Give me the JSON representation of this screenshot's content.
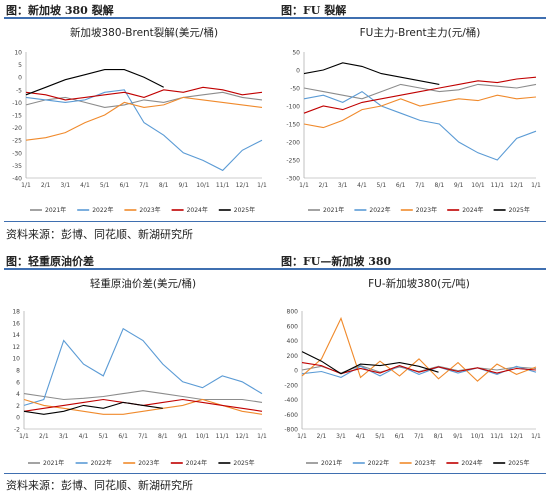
{
  "sections": {
    "s1": "图：新加坡 380 裂解",
    "s2": "图：FU 裂解",
    "s3": "图：轻重原油价差",
    "s4": "图：FU—新加坡 380"
  },
  "source": "资料来源：彭博、同花顺、新湖研究所",
  "colors": {
    "2021年": "#8c8c8c",
    "2022年": "#5b9bd5",
    "2023年": "#f08a2c",
    "2024年": "#c00000",
    "2025年": "#000000"
  },
  "chart_data": [
    {
      "type": "line",
      "title": "新加坡380-Brent裂解(美元/桶)",
      "x": [
        "1/1",
        "2/1",
        "3/1",
        "4/1",
        "5/1",
        "6/1",
        "7/1",
        "8/1",
        "9/1",
        "10/1",
        "11/1",
        "12/1",
        "1/1"
      ],
      "ylim": [
        -40,
        10
      ],
      "yticks": [
        10,
        5,
        0,
        -5,
        -10,
        -15,
        -20,
        -25,
        -30,
        -35,
        -40
      ],
      "series": [
        {
          "name": "2021年",
          "values": [
            -11,
            -9,
            -8,
            -10,
            -12,
            -11,
            -9,
            -10,
            -8,
            -7,
            -6,
            -8,
            -9
          ]
        },
        {
          "name": "2022年",
          "values": [
            -8,
            -9,
            -10,
            -9,
            -6,
            -5,
            -18,
            -23,
            -30,
            -33,
            -37,
            -29,
            -25
          ]
        },
        {
          "name": "2023年",
          "values": [
            -25,
            -24,
            -22,
            -18,
            -15,
            -10,
            -12,
            -11,
            -8,
            -9,
            -10,
            -11,
            -12
          ]
        },
        {
          "name": "2024年",
          "values": [
            -6,
            -7,
            -9,
            -8,
            -7,
            -6,
            -8,
            -5,
            -6,
            -4,
            -5,
            -7,
            -6
          ]
        },
        {
          "name": "2025年",
          "values": [
            -7,
            -4,
            -1,
            1,
            3,
            3,
            0,
            -4,
            null,
            null,
            null,
            null,
            null
          ]
        }
      ]
    },
    {
      "type": "line",
      "title": "FU主力-Brent主力(元/桶)",
      "x": [
        "1/1",
        "2/1",
        "3/1",
        "4/1",
        "5/1",
        "6/1",
        "7/1",
        "8/1",
        "9/1",
        "10/1",
        "11/1",
        "12/1",
        "1/1"
      ],
      "ylim": [
        -300,
        50
      ],
      "yticks": [
        50,
        0,
        -50,
        -100,
        -150,
        -200,
        -250,
        -300
      ],
      "series": [
        {
          "name": "2021年",
          "values": [
            -50,
            -60,
            -70,
            -80,
            -60,
            -40,
            -50,
            -60,
            -55,
            -40,
            -45,
            -50,
            -40
          ]
        },
        {
          "name": "2022年",
          "values": [
            -80,
            -70,
            -90,
            -60,
            -100,
            -120,
            -140,
            -150,
            -200,
            -230,
            -250,
            -190,
            -170
          ]
        },
        {
          "name": "2023年",
          "values": [
            -150,
            -160,
            -140,
            -110,
            -100,
            -80,
            -100,
            -90,
            -80,
            -85,
            -70,
            -80,
            -75
          ]
        },
        {
          "name": "2024年",
          "values": [
            -120,
            -100,
            -110,
            -90,
            -80,
            -70,
            -60,
            -50,
            -40,
            -30,
            -35,
            -25,
            -20
          ]
        },
        {
          "name": "2025年",
          "values": [
            -10,
            0,
            20,
            10,
            -10,
            -20,
            -30,
            -40,
            null,
            null,
            null,
            null,
            null
          ]
        }
      ]
    },
    {
      "type": "line",
      "title": "轻重原油价差(美元/桶)",
      "x": [
        "1/1",
        "2/1",
        "3/1",
        "4/1",
        "5/1",
        "6/1",
        "7/1",
        "8/1",
        "9/1",
        "10/1",
        "11/1",
        "12/1",
        "1/1"
      ],
      "ylim": [
        -2,
        18
      ],
      "yticks": [
        18,
        16,
        14,
        12,
        10,
        8,
        6,
        4,
        2,
        0,
        -2
      ],
      "series": [
        {
          "name": "2021年",
          "values": [
            4,
            3.5,
            3,
            3.2,
            3.5,
            4,
            4.5,
            4,
            3.5,
            3,
            3,
            3,
            2.5
          ]
        },
        {
          "name": "2022年",
          "values": [
            2,
            3,
            13,
            9,
            7,
            15,
            13,
            9,
            6,
            5,
            7,
            6,
            4
          ]
        },
        {
          "name": "2023年",
          "values": [
            3,
            2,
            1.5,
            1,
            0.5,
            0.5,
            1,
            1.5,
            2,
            3,
            2,
            1,
            0.5
          ]
        },
        {
          "name": "2024年",
          "values": [
            1,
            1.5,
            2,
            2.5,
            3,
            2.5,
            2,
            2.5,
            3,
            2.5,
            2,
            1.5,
            1
          ]
        },
        {
          "name": "2025年",
          "values": [
            1,
            0.5,
            1,
            2,
            1.5,
            2.5,
            2,
            1.5,
            null,
            null,
            null,
            null,
            null
          ]
        }
      ]
    },
    {
      "type": "line",
      "title": "FU-新加坡380(元/吨)",
      "x": [
        "1/1",
        "2/1",
        "3/1",
        "4/1",
        "5/1",
        "6/1",
        "7/1",
        "8/1",
        "9/1",
        "10/1",
        "11/1",
        "12/1",
        "1/1"
      ],
      "ylim": [
        -800,
        800
      ],
      "yticks": [
        800,
        600,
        400,
        200,
        0,
        -200,
        -400,
        -600,
        -800
      ],
      "series": [
        {
          "name": "2021年",
          "values": [
            0,
            50,
            -40,
            60,
            -30,
            40,
            -20,
            50,
            -10,
            30,
            0,
            40,
            20
          ]
        },
        {
          "name": "2022年",
          "values": [
            -50,
            -20,
            -100,
            50,
            -80,
            60,
            -60,
            40,
            -40,
            30,
            -60,
            50,
            -30
          ]
        },
        {
          "name": "2023年",
          "values": [
            -80,
            150,
            700,
            -100,
            120,
            -80,
            150,
            -120,
            100,
            -150,
            80,
            -60,
            40
          ]
        },
        {
          "name": "2024年",
          "values": [
            100,
            60,
            -50,
            20,
            -40,
            60,
            -30,
            40,
            -20,
            30,
            -40,
            20,
            0
          ]
        },
        {
          "name": "2025年",
          "values": [
            250,
            120,
            -50,
            80,
            60,
            100,
            50,
            -30,
            null,
            null,
            null,
            null,
            null
          ]
        }
      ]
    }
  ]
}
